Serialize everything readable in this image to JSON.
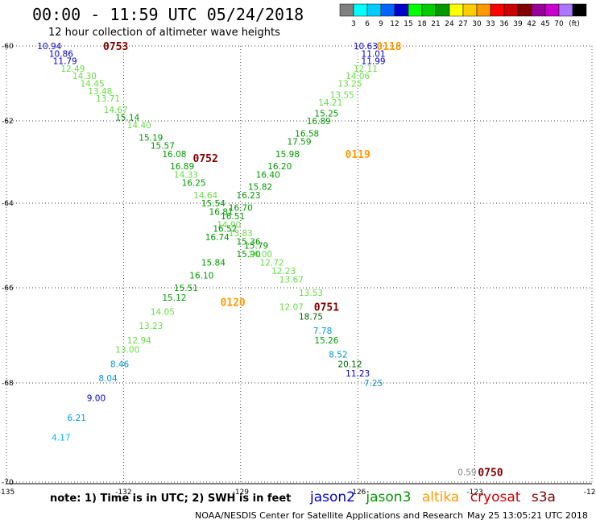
{
  "title": "00:00 - 11:59 UTC 05/24/2018",
  "subtitle": "12 hour collection of altimeter wave heights",
  "note": "note: 1) Time is in UTC; 2) SWH is in feet",
  "credit": "NOAA/NESDIS Center for Satellite Applications and Research",
  "timestamp": "May 25 13:05:21 UTC 2018",
  "missions": [
    {
      "name": "jason2",
      "color": "#0000cc"
    },
    {
      "name": "jason3",
      "color": "#009900"
    },
    {
      "name": "altika",
      "color": "#ff9900"
    },
    {
      "name": "cryosat",
      "color": "#cc0000"
    },
    {
      "name": "s3a",
      "color": "#800000"
    }
  ],
  "colorbar": {
    "unit": "(ft)",
    "colors": [
      "#808080",
      "#00ffff",
      "#00ccff",
      "#0066ff",
      "#0000cc",
      "#00ff00",
      "#00cc00",
      "#009900",
      "#ffff00",
      "#ffcc00",
      "#ff9900",
      "#ff0000",
      "#cc0000",
      "#800000",
      "#990099",
      "#cc00cc",
      "#aa77ff",
      "#000000"
    ],
    "labels": [
      "3",
      "6",
      "9",
      "12",
      "15",
      "18",
      "21",
      "24",
      "27",
      "30",
      "33",
      "36",
      "39",
      "42",
      "45",
      "70"
    ]
  },
  "chart_data": {
    "type": "scatter",
    "title": "00:00 - 11:59 UTC 05/24/2018",
    "subtitle": "12 hour collection of altimeter wave heights",
    "xlabel": "",
    "ylabel": "",
    "xlim": [
      -135,
      -120
    ],
    "ylim": [
      -70,
      -60
    ],
    "x_ticks": [
      -135,
      -132,
      -129,
      -126,
      -123,
      -120
    ],
    "y_ticks": [
      -60,
      -62,
      -64,
      -66,
      -68,
      -70
    ],
    "x_tick_labels": [
      "-135",
      "-132",
      "-129",
      "-126",
      "-123",
      "-120"
    ],
    "y_tick_labels": [
      "-60",
      "-62",
      "-64",
      "-66",
      "-68",
      "-70"
    ],
    "grid": true,
    "time_labels": [
      {
        "text": "0753",
        "lon": -132.2,
        "lat": -60.0,
        "color": "#800000"
      },
      {
        "text": "0752",
        "lon": -129.9,
        "lat": -62.9,
        "color": "#800000"
      },
      {
        "text": "0751",
        "lon": -126.8,
        "lat": -66.4,
        "color": "#800000"
      },
      {
        "text": "0750",
        "lon": -122.6,
        "lat": -69.8,
        "color": "#800000"
      },
      {
        "text": "0118",
        "lon": -125.2,
        "lat": -60.0,
        "color": "#ff9900"
      },
      {
        "text": "0119",
        "lon": -126.0,
        "lat": -62.8,
        "color": "#ff9900"
      },
      {
        "text": "0120",
        "lon": -129.2,
        "lat": -66.3,
        "color": "#ff9900"
      }
    ],
    "series": [
      {
        "name": "",
        "points": [
          {
            "v": "10.94",
            "lon": -133.9,
            "lat": -60.0
          },
          {
            "v": "10.86",
            "lon": -133.6,
            "lat": -60.2
          },
          {
            "v": "11.79",
            "lon": -133.5,
            "lat": -60.4
          },
          {
            "v": "12.49",
            "lon": -133.3,
            "lat": -60.6
          },
          {
            "v": "14.30",
            "lon": -133.0,
            "lat": -60.8
          },
          {
            "v": "14.45",
            "lon": -132.8,
            "lat": -61.0
          },
          {
            "v": "13.48",
            "lon": -132.6,
            "lat": -61.2
          },
          {
            "v": "13.71",
            "lon": -132.4,
            "lat": -61.4
          },
          {
            "v": "14.67",
            "lon": -132.2,
            "lat": -61.7
          },
          {
            "v": "15.14",
            "lon": -131.9,
            "lat": -61.9
          },
          {
            "v": "14.40",
            "lon": -131.6,
            "lat": -62.1
          },
          {
            "v": "15.19",
            "lon": -131.3,
            "lat": -62.4
          },
          {
            "v": "15.57",
            "lon": -131.0,
            "lat": -62.6
          },
          {
            "v": "16.08",
            "lon": -130.7,
            "lat": -62.8
          },
          {
            "v": "16.89",
            "lon": -130.5,
            "lat": -63.1
          },
          {
            "v": "14.33",
            "lon": -130.4,
            "lat": -63.3
          },
          {
            "v": "16.25",
            "lon": -130.2,
            "lat": -63.5
          },
          {
            "v": "14.64",
            "lon": -129.9,
            "lat": -63.8
          },
          {
            "v": "15.54",
            "lon": -129.7,
            "lat": -64.0
          },
          {
            "v": "16.81",
            "lon": -129.5,
            "lat": -64.2
          },
          {
            "v": "14.90",
            "lon": -129.3,
            "lat": -64.5
          },
          {
            "v": "13.83",
            "lon": -129.0,
            "lat": -64.7
          },
          {
            "v": "15.36",
            "lon": -128.8,
            "lat": -64.9
          },
          {
            "v": "15.79",
            "lon": -128.6,
            "lat": -65.0
          },
          {
            "v": "15.90",
            "lon": -128.8,
            "lat": -65.2
          },
          {
            "v": "14.00",
            "lon": -128.5,
            "lat": -65.2
          },
          {
            "v": "12.72",
            "lon": -128.2,
            "lat": -65.4
          },
          {
            "v": "12.23",
            "lon": -127.9,
            "lat": -65.6
          },
          {
            "v": "13.67",
            "lon": -127.7,
            "lat": -65.8
          },
          {
            "v": "13.53",
            "lon": -127.2,
            "lat": -66.1
          },
          {
            "v": "12.07",
            "lon": -127.7,
            "lat": -66.4
          },
          {
            "v": "18.75",
            "lon": -127.2,
            "lat": -66.6
          },
          {
            "v": "7.78",
            "lon": -126.9,
            "lat": -66.9
          },
          {
            "v": "15.26",
            "lon": -126.8,
            "lat": -67.1
          },
          {
            "v": "8.52",
            "lon": -126.5,
            "lat": -67.4
          },
          {
            "v": "20.12",
            "lon": -126.2,
            "lat": -67.6
          },
          {
            "v": "11.23",
            "lon": -126.0,
            "lat": -67.8
          },
          {
            "v": "7.25",
            "lon": -125.6,
            "lat": -68.0
          },
          {
            "v": "0.59",
            "lon": -123.2,
            "lat": -69.8
          }
        ]
      },
      {
        "name": "",
        "points": [
          {
            "v": "10.63",
            "lon": -125.8,
            "lat": -60.0
          },
          {
            "v": "11.01",
            "lon": -125.6,
            "lat": -60.2
          },
          {
            "v": "11.99",
            "lon": -125.6,
            "lat": -60.4
          },
          {
            "v": "12.11",
            "lon": -125.8,
            "lat": -60.6
          },
          {
            "v": "14.06",
            "lon": -126.0,
            "lat": -60.8
          },
          {
            "v": "13.25",
            "lon": -126.2,
            "lat": -61.0
          },
          {
            "v": "13.55",
            "lon": -126.4,
            "lat": -61.3
          },
          {
            "v": "14.21",
            "lon": -126.7,
            "lat": -61.5
          },
          {
            "v": "15.25",
            "lon": -126.8,
            "lat": -61.8
          },
          {
            "v": "16.89",
            "lon": -127.0,
            "lat": -62.0
          },
          {
            "v": "16.58",
            "lon": -127.3,
            "lat": -62.3
          },
          {
            "v": "17.59",
            "lon": -127.5,
            "lat": -62.5
          },
          {
            "v": "15.98",
            "lon": -127.8,
            "lat": -62.8
          },
          {
            "v": "16.20",
            "lon": -128.0,
            "lat": -63.1
          },
          {
            "v": "16.40",
            "lon": -128.3,
            "lat": -63.3
          },
          {
            "v": "15.82",
            "lon": -128.5,
            "lat": -63.6
          },
          {
            "v": "16.23",
            "lon": -128.8,
            "lat": -63.8
          },
          {
            "v": "16.70",
            "lon": -129.0,
            "lat": -64.1
          },
          {
            "v": "16.51",
            "lon": -129.2,
            "lat": -64.3
          },
          {
            "v": "16.52",
            "lon": -129.4,
            "lat": -64.6
          },
          {
            "v": "16.74",
            "lon": -129.6,
            "lat": -64.8
          },
          {
            "v": "15.84",
            "lon": -129.7,
            "lat": -65.4
          },
          {
            "v": "16.10",
            "lon": -130.0,
            "lat": -65.7
          },
          {
            "v": "15.51",
            "lon": -130.4,
            "lat": -66.0
          },
          {
            "v": "15.12",
            "lon": -130.7,
            "lat": -66.2
          },
          {
            "v": "14.05",
            "lon": -131.0,
            "lat": -66.5
          },
          {
            "v": "13.23",
            "lon": -131.3,
            "lat": -66.8
          },
          {
            "v": "12.94",
            "lon": -131.6,
            "lat": -67.1
          },
          {
            "v": "13.00",
            "lon": -131.9,
            "lat": -67.3
          },
          {
            "v": "8.46",
            "lon": -132.1,
            "lat": -67.6
          },
          {
            "v": "8.04",
            "lon": -132.4,
            "lat": -67.9
          },
          {
            "v": "9.00",
            "lon": -132.7,
            "lat": -68.3
          },
          {
            "v": "6.21",
            "lon": -133.2,
            "lat": -68.7
          },
          {
            "v": "4.17",
            "lon": -133.6,
            "lat": -69.1
          }
        ]
      }
    ]
  }
}
